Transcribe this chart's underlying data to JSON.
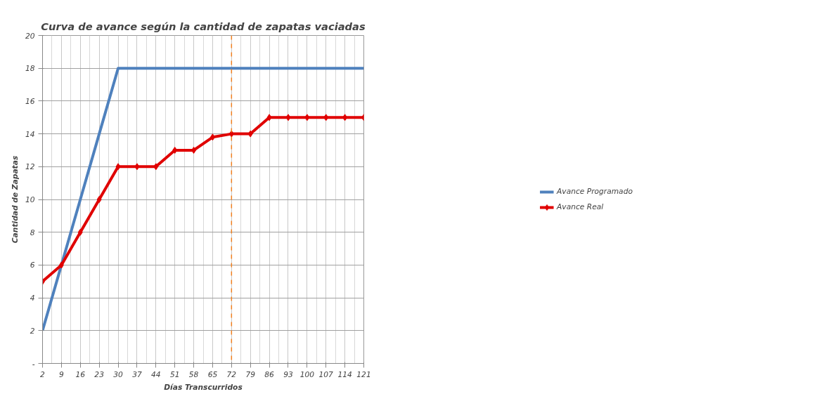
{
  "chart_data": {
    "type": "line",
    "title": "Curva de avance según la cantidad de zapatas vaciadas",
    "xlabel": "Días Transcurridos",
    "ylabel": "Cantidad de Zapatas",
    "x": [
      2,
      9,
      16,
      23,
      30,
      37,
      44,
      51,
      58,
      65,
      72,
      79,
      86,
      93,
      100,
      107,
      114,
      121
    ],
    "series": [
      {
        "name": "Avance Programado",
        "color": "#4f81bd",
        "marker": "none",
        "values": [
          2,
          6,
          10,
          14,
          18,
          18,
          18,
          18,
          18,
          18,
          18,
          18,
          18,
          18,
          18,
          18,
          18,
          18
        ]
      },
      {
        "name": "Avance Real",
        "color": "#e00000",
        "marker": "diamond",
        "values": [
          5,
          6,
          8,
          10,
          12,
          12,
          12,
          13,
          13,
          13.8,
          14,
          14,
          15,
          15,
          15,
          15,
          15,
          15
        ]
      }
    ],
    "xlim": [
      2,
      121
    ],
    "xticks": [
      2,
      9,
      16,
      23,
      30,
      37,
      44,
      51,
      58,
      65,
      72,
      79,
      86,
      93,
      100,
      107,
      114,
      121
    ],
    "ylim": [
      0,
      20
    ],
    "yticks": [
      {
        "value": 0,
        "label": "-"
      },
      2,
      4,
      6,
      8,
      10,
      12,
      14,
      16,
      18,
      20
    ],
    "ref_lines": [
      {
        "axis": "x",
        "value": 72,
        "color": "#f07f1e",
        "line_style": "dashed"
      }
    ],
    "grid": true,
    "legend": "right",
    "line_style": "solid"
  }
}
